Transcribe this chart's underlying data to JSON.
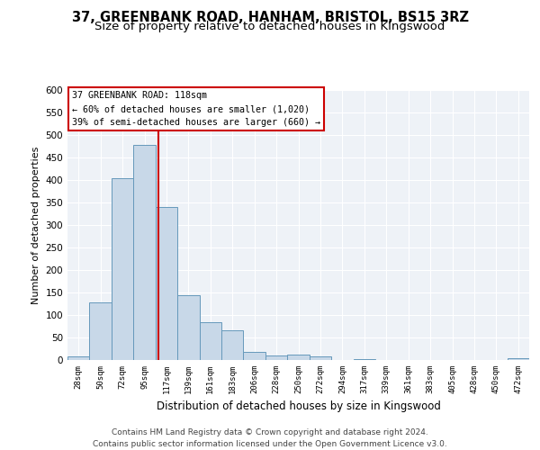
{
  "title1": "37, GREENBANK ROAD, HANHAM, BRISTOL, BS15 3RZ",
  "title2": "Size of property relative to detached houses in Kingswood",
  "xlabel": "Distribution of detached houses by size in Kingswood",
  "ylabel": "Number of detached properties",
  "footnote": "Contains HM Land Registry data © Crown copyright and database right 2024.\nContains public sector information licensed under the Open Government Licence v3.0.",
  "bin_labels": [
    "28sqm",
    "50sqm",
    "72sqm",
    "95sqm",
    "117sqm",
    "139sqm",
    "161sqm",
    "183sqm",
    "206sqm",
    "228sqm",
    "250sqm",
    "272sqm",
    "294sqm",
    "317sqm",
    "339sqm",
    "361sqm",
    "383sqm",
    "405sqm",
    "428sqm",
    "450sqm",
    "472sqm"
  ],
  "bar_values": [
    8,
    128,
    405,
    478,
    340,
    145,
    85,
    67,
    18,
    10,
    13,
    8,
    0,
    3,
    0,
    0,
    0,
    0,
    0,
    0,
    4
  ],
  "bar_color": "#c8d8e8",
  "bar_edgecolor": "#6699bb",
  "annotation_text": "37 GREENBANK ROAD: 118sqm\n← 60% of detached houses are smaller (1,020)\n39% of semi-detached houses are larger (660) →",
  "annotation_box_edgecolor": "#cc0000",
  "vline_x": 3.65,
  "vline_color": "#cc0000",
  "ylim": [
    0,
    600
  ],
  "yticks": [
    0,
    50,
    100,
    150,
    200,
    250,
    300,
    350,
    400,
    450,
    500,
    550,
    600
  ],
  "bg_color": "#eef2f7",
  "grid_color": "#ffffff",
  "fig_bg": "#ffffff",
  "title1_fontsize": 10.5,
  "title2_fontsize": 9.5,
  "footnote_fontsize": 6.5
}
